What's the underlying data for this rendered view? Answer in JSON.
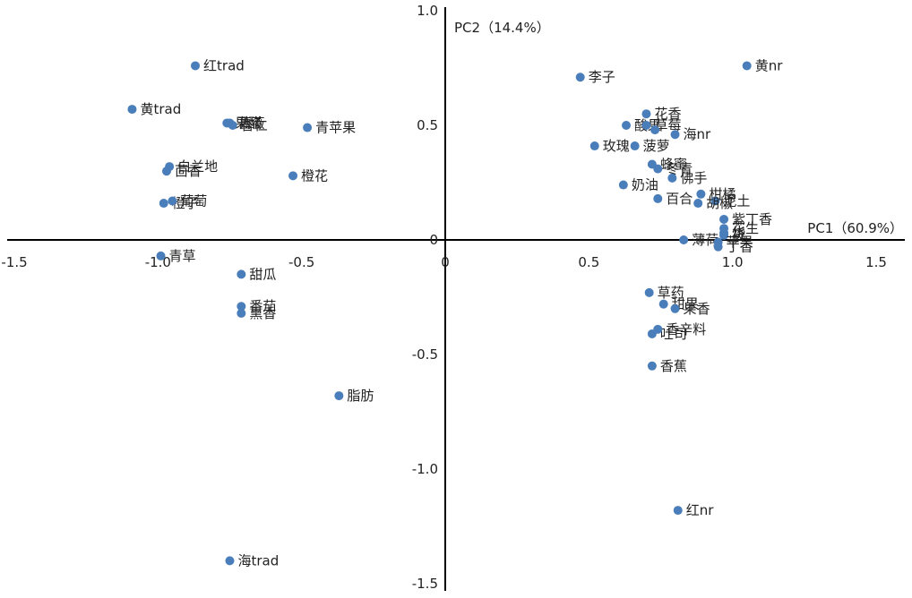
{
  "chart_data": {
    "type": "scatter",
    "xlabel": "PC1（60.9%）",
    "ylabel": "PC2（14.4%）",
    "xlim": [
      -1.5,
      1.5
    ],
    "ylim": [
      -1.5,
      1.0
    ],
    "x_ticks": [
      "-1.5",
      "-1.0",
      "-0.5",
      "0",
      "0.5",
      "1.0",
      "1.5"
    ],
    "y_ticks": [
      "1.0",
      "0.5",
      "0",
      "-0.5",
      "-1.0",
      "-1.5"
    ],
    "grid": false,
    "colors": {
      "point": "#4a7ebb",
      "axis": "#000000"
    },
    "points": [
      {
        "label": "红trad",
        "x": -0.87,
        "y": 0.76
      },
      {
        "label": "黄trad",
        "x": -1.09,
        "y": 0.57
      },
      {
        "label": "果醋",
        "x": -0.76,
        "y": 0.51
      },
      {
        "label": "蔷薇",
        "x": -0.75,
        "y": 0.51
      },
      {
        "label": "杏仁",
        "x": -0.74,
        "y": 0.5
      },
      {
        "label": "青苹果",
        "x": -0.48,
        "y": 0.49
      },
      {
        "label": "茴香",
        "x": -0.97,
        "y": 0.3
      },
      {
        "label": "白兰地",
        "x": -0.96,
        "y": 0.32
      },
      {
        "label": "橙花",
        "x": -0.53,
        "y": 0.28
      },
      {
        "label": "橙子",
        "x": -0.98,
        "y": 0.16
      },
      {
        "label": "葡萄",
        "x": -0.95,
        "y": 0.17
      },
      {
        "label": "青草",
        "x": -0.99,
        "y": -0.07
      },
      {
        "label": "甜瓜",
        "x": -0.71,
        "y": -0.15
      },
      {
        "label": "番茄",
        "x": -0.71,
        "y": -0.29
      },
      {
        "label": "熏香",
        "x": -0.71,
        "y": -0.32
      },
      {
        "label": "脂肪",
        "x": -0.37,
        "y": -0.68
      },
      {
        "label": "海trad",
        "x": -0.75,
        "y": -1.4
      },
      {
        "label": "李子",
        "x": 0.47,
        "y": 0.71
      },
      {
        "label": "黄nr",
        "x": 1.05,
        "y": 0.76
      },
      {
        "label": "花香",
        "x": 0.7,
        "y": 0.55
      },
      {
        "label": "酸果",
        "x": 0.63,
        "y": 0.5
      },
      {
        "label": "草莓",
        "x": 0.7,
        "y": 0.5
      },
      {
        "label": "海nr",
        "x": 0.8,
        "y": 0.46
      },
      {
        "label": "",
        "x": 0.73,
        "y": 0.48
      },
      {
        "label": "玫瑰",
        "x": 0.52,
        "y": 0.41
      },
      {
        "label": "菠萝",
        "x": 0.66,
        "y": 0.41
      },
      {
        "label": "蜂蜜",
        "x": 0.72,
        "y": 0.33
      },
      {
        "label": "冬青",
        "x": 0.74,
        "y": 0.31
      },
      {
        "label": "佛手",
        "x": 0.79,
        "y": 0.27
      },
      {
        "label": "奶油",
        "x": 0.62,
        "y": 0.24
      },
      {
        "label": "百合",
        "x": 0.74,
        "y": 0.18
      },
      {
        "label": "柑橘",
        "x": 0.89,
        "y": 0.2
      },
      {
        "label": "泥土",
        "x": 0.94,
        "y": 0.17
      },
      {
        "label": "胡椒",
        "x": 0.88,
        "y": 0.16
      },
      {
        "label": "紫丁香",
        "x": 0.97,
        "y": 0.09
      },
      {
        "label": "花生",
        "x": 0.97,
        "y": 0.05
      },
      {
        "label": "烧",
        "x": 0.97,
        "y": 0.03
      },
      {
        "label": "筱",
        "x": 0.97,
        "y": 0.02
      },
      {
        "label": "薄荷",
        "x": 0.83,
        "y": 0.0
      },
      {
        "label": "苹果",
        "x": 0.95,
        "y": -0.01
      },
      {
        "label": "丁香",
        "x": 0.95,
        "y": -0.03
      },
      {
        "label": "草药",
        "x": 0.71,
        "y": -0.23
      },
      {
        "label": "甜果",
        "x": 0.76,
        "y": -0.28
      },
      {
        "label": "果香",
        "x": 0.8,
        "y": -0.3
      },
      {
        "label": "吐司",
        "x": 0.72,
        "y": -0.41
      },
      {
        "label": "香辛料",
        "x": 0.74,
        "y": -0.39
      },
      {
        "label": "香蕉",
        "x": 0.72,
        "y": -0.55
      },
      {
        "label": "红nr",
        "x": 0.81,
        "y": -1.18
      }
    ]
  }
}
